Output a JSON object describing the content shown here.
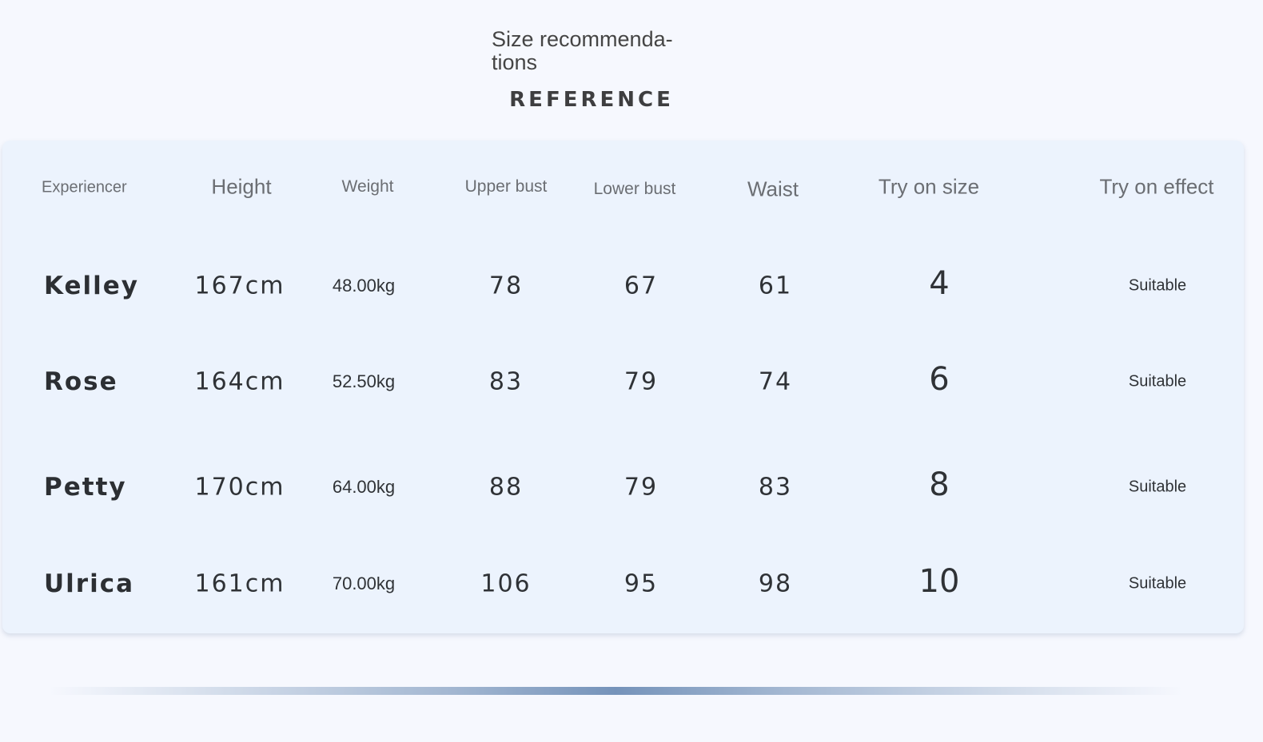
{
  "header": {
    "title": "Size recommenda­tions",
    "subtitle": "REFERENCE"
  },
  "table": {
    "columns": [
      "Experiencer",
      "Height",
      "Weight",
      "Upper bust",
      "Lower bust",
      "Waist",
      "Try on size",
      "Try on effect"
    ],
    "rows": [
      {
        "name": "Kelley",
        "height": "167cm",
        "weight": "48.00kg",
        "upper_bust": "78",
        "lower_bust": "67",
        "waist": "61",
        "size": "4",
        "effect": "Suitable"
      },
      {
        "name": "Rose",
        "height": "164cm",
        "weight": "52.50kg",
        "upper_bust": "83",
        "lower_bust": "79",
        "waist": "74",
        "size": "6",
        "effect": "Suitable"
      },
      {
        "name": "Petty",
        "height": "170cm",
        "weight": "64.00kg",
        "upper_bust": "88",
        "lower_bust": "79",
        "waist": "83",
        "size": "8",
        "effect": "Suitable"
      },
      {
        "name": "Ulrica",
        "height": "161cm",
        "weight": "70.00kg",
        "upper_bust": "106",
        "lower_bust": "95",
        "waist": "98",
        "size": "10",
        "effect": "Suitable"
      }
    ]
  },
  "colors": {
    "background": "#f6f8fe",
    "card": "#ecf3fd",
    "divider_accent": "#7593ba"
  }
}
